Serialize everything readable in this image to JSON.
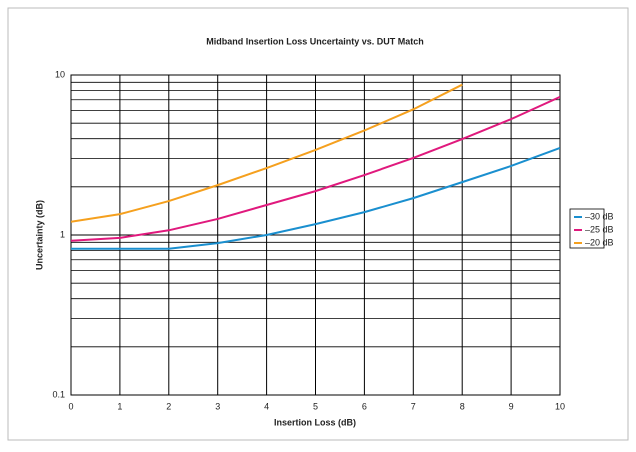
{
  "chart_data": {
    "type": "line",
    "title": "Midband Insertion Loss Uncertainty vs. DUT Match",
    "x_label": "Insertion Loss (dB)",
    "y_label": "Uncertainty (dB)",
    "x": [
      0,
      1,
      2,
      3,
      4,
      5,
      6,
      7,
      8,
      9,
      10
    ],
    "series": [
      {
        "name": "–30 dB",
        "color": "#1a8fcf",
        "values": [
          0.82,
          0.82,
          0.82,
          0.89,
          1.0,
          1.17,
          1.39,
          1.7,
          2.14,
          2.7,
          3.5
        ]
      },
      {
        "name": "–25 dB",
        "color": "#e0197d",
        "values": [
          0.92,
          0.96,
          1.07,
          1.26,
          1.54,
          1.88,
          2.37,
          3.03,
          3.98,
          5.3,
          7.3
        ]
      },
      {
        "name": "–20 dB",
        "color": "#f5a01e",
        "values": [
          1.21,
          1.35,
          1.63,
          2.05,
          2.62,
          3.4,
          4.5,
          6.1,
          8.7,
          null,
          null
        ]
      }
    ],
    "xlim": [
      0,
      10
    ],
    "xticks": [
      0,
      1,
      2,
      3,
      4,
      5,
      6,
      7,
      8,
      9,
      10
    ],
    "ylim": [
      0.1,
      10
    ],
    "yticks": [
      0.1,
      1,
      10
    ],
    "y_minor_grid": [
      0.2,
      0.3,
      0.4,
      0.5,
      0.6,
      0.7,
      0.8,
      0.9,
      2,
      3,
      4,
      5,
      6,
      7,
      8,
      9
    ],
    "y_log": true,
    "grid": true,
    "legend": "right"
  }
}
